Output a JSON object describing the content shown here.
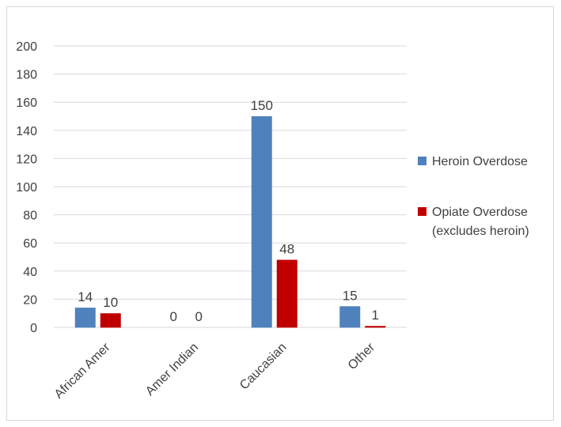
{
  "chart_data": {
    "type": "bar",
    "categories": [
      "African Amer",
      "Amer Indian",
      "Caucasian",
      "Other"
    ],
    "series": [
      {
        "name": "Heroin Overdose",
        "values": [
          14,
          0,
          150,
          15
        ],
        "color": "#4f81bd"
      },
      {
        "name": "Opiate Overdose (excludes heroin)",
        "values": [
          10,
          0,
          48,
          1
        ],
        "color": "#c00000"
      }
    ],
    "yticks": [
      0,
      20,
      40,
      60,
      80,
      100,
      120,
      140,
      160,
      180,
      200
    ],
    "ylim": [
      0,
      200
    ],
    "grid": true,
    "legend": "right",
    "data_labels": true
  },
  "legend": {
    "heroin": "Heroin Overdose",
    "opiate_line1": "Opiate Overdose",
    "opiate_line2": "(excludes heroin)"
  }
}
